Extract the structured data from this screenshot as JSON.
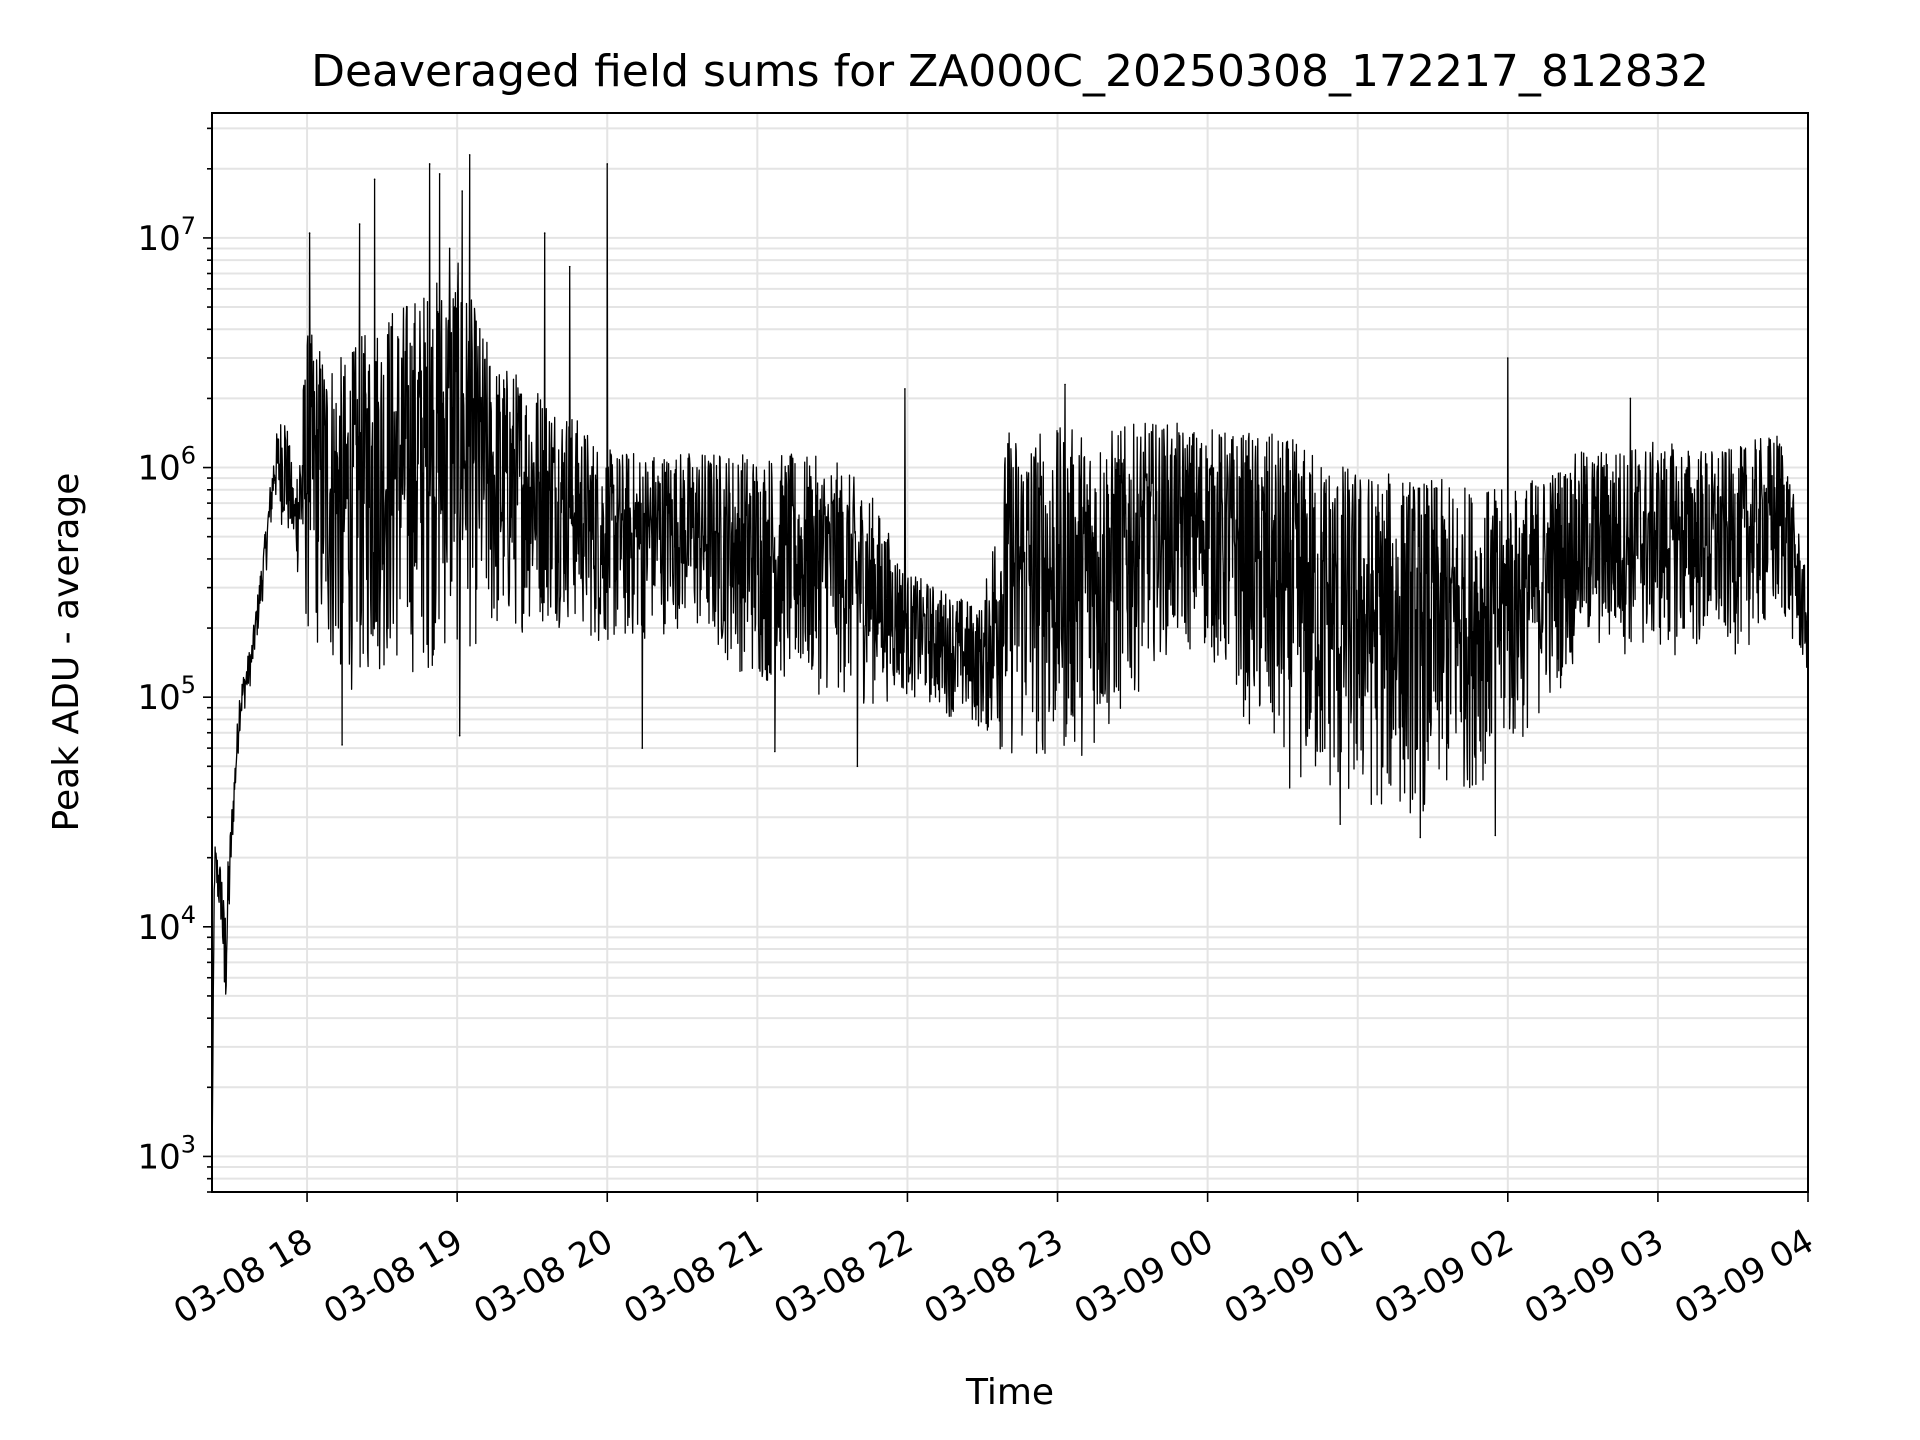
{
  "chart_data": {
    "type": "line",
    "title": "Deaveraged field sums for ZA000C_20250308_172217_812832",
    "xlabel": "Time",
    "ylabel": "Peak ADU - average",
    "yscale": "log",
    "ylim": [
      700,
      35000000
    ],
    "xlim": [
      "2025-03-08 17:22",
      "2025-03-09 04:00"
    ],
    "grid": true,
    "x_ticks": [
      {
        "value": "2025-03-08 18:00",
        "label": "03-08 18"
      },
      {
        "value": "2025-03-08 19:00",
        "label": "03-08 19"
      },
      {
        "value": "2025-03-08 20:00",
        "label": "03-08 20"
      },
      {
        "value": "2025-03-08 21:00",
        "label": "03-08 21"
      },
      {
        "value": "2025-03-08 22:00",
        "label": "03-08 22"
      },
      {
        "value": "2025-03-08 23:00",
        "label": "03-08 23"
      },
      {
        "value": "2025-03-09 00:00",
        "label": "03-09 00"
      },
      {
        "value": "2025-03-09 01:00",
        "label": "03-09 01"
      },
      {
        "value": "2025-03-09 02:00",
        "label": "03-09 02"
      },
      {
        "value": "2025-03-09 03:00",
        "label": "03-09 03"
      },
      {
        "value": "2025-03-09 04:00",
        "label": "03-09 04"
      }
    ],
    "y_ticks": [
      {
        "value": 1000,
        "label_base": "10",
        "label_exp": "3"
      },
      {
        "value": 10000,
        "label_base": "10",
        "label_exp": "4"
      },
      {
        "value": 100000,
        "label_base": "10",
        "label_exp": "5"
      },
      {
        "value": 1000000,
        "label_base": "10",
        "label_exp": "6"
      },
      {
        "value": 10000000,
        "label_base": "10",
        "label_exp": "7"
      }
    ],
    "line_color": "#000000",
    "series": [
      {
        "envelope": [
          {
            "t": "2025-03-08 17:22",
            "lo": 800,
            "hi": 900
          },
          {
            "t": "2025-03-08 17:23",
            "lo": 14000,
            "hi": 24000
          },
          {
            "t": "2025-03-08 17:26",
            "lo": 9000,
            "hi": 18000
          },
          {
            "t": "2025-03-08 17:27",
            "lo": 2600,
            "hi": 12000
          },
          {
            "t": "2025-03-08 17:30",
            "lo": 20000,
            "hi": 35000
          },
          {
            "t": "2025-03-08 17:33",
            "lo": 70000,
            "hi": 110000
          },
          {
            "t": "2025-03-08 17:38",
            "lo": 120000,
            "hi": 180000
          },
          {
            "t": "2025-03-08 17:43",
            "lo": 300000,
            "hi": 500000
          },
          {
            "t": "2025-03-08 17:47",
            "lo": 700000,
            "hi": 1300000
          },
          {
            "t": "2025-03-08 17:51",
            "lo": 500000,
            "hi": 2000000
          },
          {
            "t": "2025-03-08 17:55",
            "lo": 400000,
            "hi": 800000
          },
          {
            "t": "2025-03-08 18:00",
            "lo": 170000,
            "hi": 4000000
          },
          {
            "t": "2025-03-08 18:15",
            "lo": 100000,
            "hi": 3000000
          },
          {
            "t": "2025-03-08 18:30",
            "lo": 120000,
            "hi": 5000000
          },
          {
            "t": "2025-03-08 18:45",
            "lo": 120000,
            "hi": 6000000
          },
          {
            "t": "2025-03-08 19:00",
            "lo": 150000,
            "hi": 8000000
          },
          {
            "t": "2025-03-08 19:15",
            "lo": 160000,
            "hi": 3000000
          },
          {
            "t": "2025-03-08 19:30",
            "lo": 200000,
            "hi": 2500000
          },
          {
            "t": "2025-03-08 19:45",
            "lo": 200000,
            "hi": 1800000
          },
          {
            "t": "2025-03-08 20:00",
            "lo": 150000,
            "hi": 1200000
          },
          {
            "t": "2025-03-08 20:30",
            "lo": 200000,
            "hi": 1200000
          },
          {
            "t": "2025-03-08 21:00",
            "lo": 110000,
            "hi": 1200000
          },
          {
            "t": "2025-03-08 21:30",
            "lo": 100000,
            "hi": 1100000
          },
          {
            "t": "2025-03-08 21:45",
            "lo": 90000,
            "hi": 800000
          },
          {
            "t": "2025-03-08 22:00",
            "lo": 100000,
            "hi": 350000
          },
          {
            "t": "2025-03-08 22:30",
            "lo": 70000,
            "hi": 250000
          },
          {
            "t": "2025-03-08 22:40",
            "lo": 50000,
            "hi": 1500000
          },
          {
            "t": "2025-03-08 23:00",
            "lo": 50000,
            "hi": 1500000
          },
          {
            "t": "2025-03-08 23:20",
            "lo": 60000,
            "hi": 1500000
          },
          {
            "t": "2025-03-08 23:40",
            "lo": 150000,
            "hi": 1600000
          },
          {
            "t": "2025-03-09 00:00",
            "lo": 150000,
            "hi": 1500000
          },
          {
            "t": "2025-03-09 00:30",
            "lo": 40000,
            "hi": 1400000
          },
          {
            "t": "2025-03-09 01:00",
            "lo": 30000,
            "hi": 1000000
          },
          {
            "t": "2025-03-09 01:30",
            "lo": 30000,
            "hi": 900000
          },
          {
            "t": "2025-03-09 02:00",
            "lo": 50000,
            "hi": 800000
          },
          {
            "t": "2025-03-09 02:30",
            "lo": 150000,
            "hi": 1200000
          },
          {
            "t": "2025-03-09 03:00",
            "lo": 150000,
            "hi": 1300000
          },
          {
            "t": "2025-03-09 03:30",
            "lo": 150000,
            "hi": 1200000
          },
          {
            "t": "2025-03-09 03:50",
            "lo": 200000,
            "hi": 1500000
          },
          {
            "t": "2025-03-09 04:00",
            "lo": 120000,
            "hi": 300000
          }
        ],
        "spikes": [
          {
            "t": "2025-03-08 17:22",
            "value": 800
          },
          {
            "t": "2025-03-08 18:01",
            "value": 10500000
          },
          {
            "t": "2025-03-08 18:21",
            "value": 11500000
          },
          {
            "t": "2025-03-08 18:27",
            "value": 18000000
          },
          {
            "t": "2025-03-08 18:49",
            "value": 21000000
          },
          {
            "t": "2025-03-08 18:53",
            "value": 19000000
          },
          {
            "t": "2025-03-08 18:57",
            "value": 9000000
          },
          {
            "t": "2025-03-08 19:02",
            "value": 16000000
          },
          {
            "t": "2025-03-08 19:05",
            "value": 23000000
          },
          {
            "t": "2025-03-08 19:35",
            "value": 10500000
          },
          {
            "t": "2025-03-08 19:45",
            "value": 7500000
          },
          {
            "t": "2025-03-08 20:00",
            "value": 21000000
          },
          {
            "t": "2025-03-08 21:59",
            "value": 2200000
          },
          {
            "t": "2025-03-08 23:03",
            "value": 2300000
          },
          {
            "t": "2025-03-09 02:00",
            "value": 3000000
          },
          {
            "t": "2025-03-09 02:49",
            "value": 2000000
          },
          {
            "t": "2025-03-08 19:01",
            "value": 68000
          },
          {
            "t": "2025-03-08 18:14",
            "value": 62000
          },
          {
            "t": "2025-03-08 20:14",
            "value": 60000
          },
          {
            "t": "2025-03-08 21:07",
            "value": 58000
          },
          {
            "t": "2025-03-08 21:40",
            "value": 50000
          },
          {
            "t": "2025-03-09 00:53",
            "value": 28000
          },
          {
            "t": "2025-03-09 01:25",
            "value": 24500
          },
          {
            "t": "2025-03-09 01:55",
            "value": 25000
          }
        ]
      }
    ]
  }
}
